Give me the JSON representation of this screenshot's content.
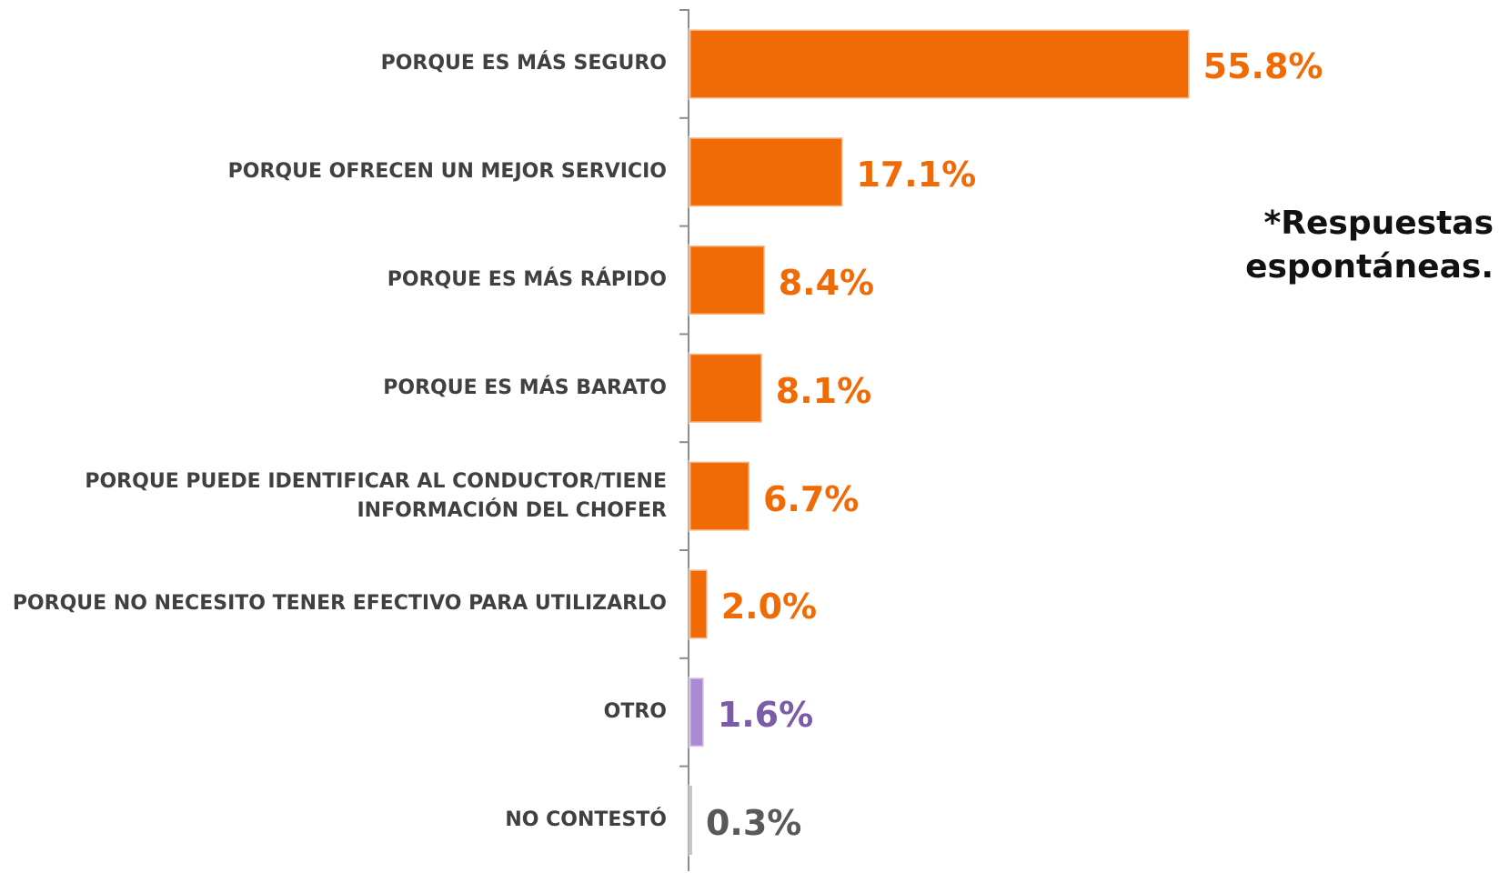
{
  "chart_data": {
    "type": "bar",
    "orientation": "horizontal",
    "categories": [
      "PORQUE ES MÁS SEGURO",
      "PORQUE OFRECEN UN MEJOR SERVICIO",
      "PORQUE  ES MÁS RÁPIDO",
      "PORQUE ES MÁS BARATO",
      "PORQUE PUEDE IDENTIFICAR AL CONDUCTOR/TIENE INFORMACIÓN DEL CHOFER",
      "PORQUE NO NECESITO TENER EFECTIVO PARA UTILIZARLO",
      "OTRO",
      "NO CONTESTÓ"
    ],
    "values": [
      55.8,
      17.1,
      8.4,
      8.1,
      6.7,
      2.0,
      1.6,
      0.3
    ],
    "value_labels": [
      "55.8%",
      "17.1%",
      "8.4%",
      "8.1%",
      "6.7%",
      "2.0%",
      "1.6%",
      "0.3%"
    ],
    "colors": [
      "#f06a05",
      "#f06a05",
      "#f06a05",
      "#f06a05",
      "#f06a05",
      "#f06a05",
      "#a98bd3",
      "#8c8c8c"
    ],
    "label_colors": [
      "#f06a05",
      "#f06a05",
      "#f06a05",
      "#f06a05",
      "#f06a05",
      "#f06a05",
      "#7a5ca8",
      "#595959"
    ],
    "annotation": [
      "*Respuestas",
      "espontáneas."
    ]
  }
}
